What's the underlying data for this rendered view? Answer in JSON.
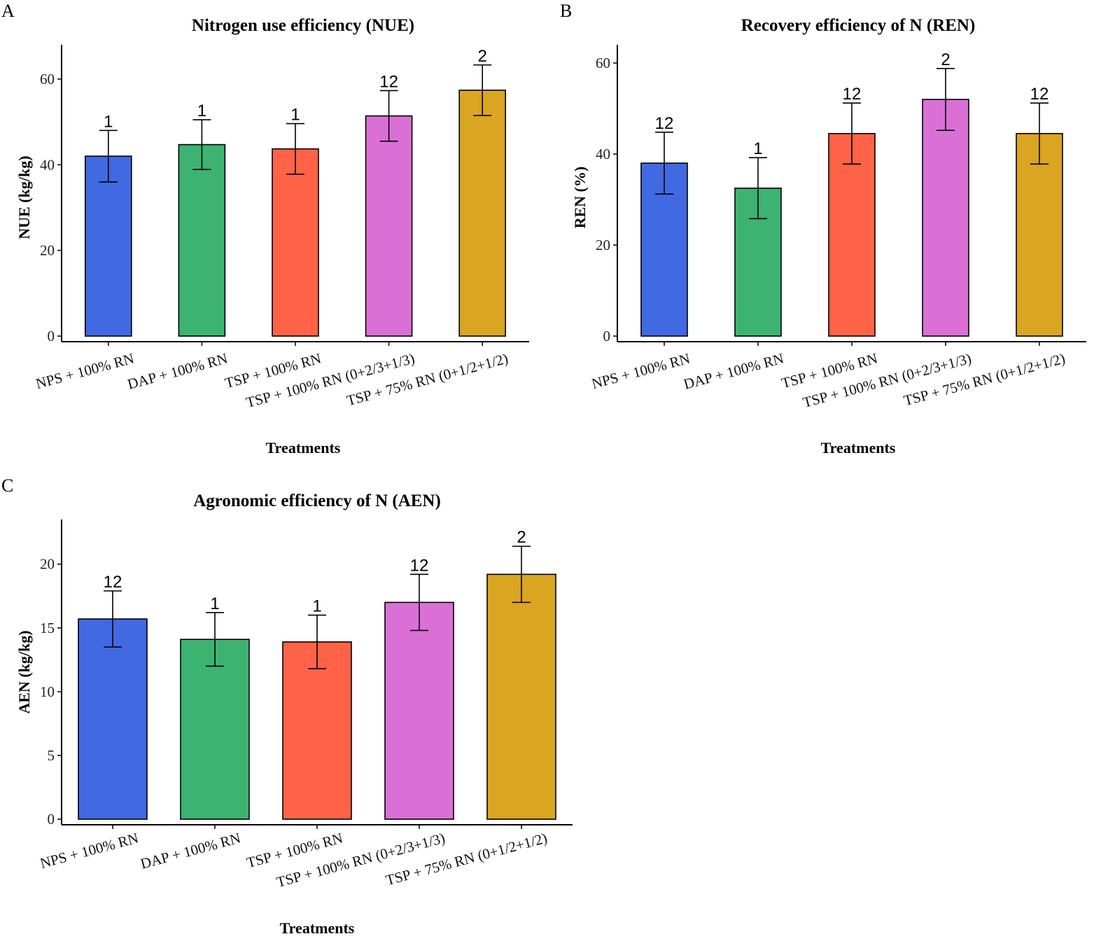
{
  "colors": {
    "blue": "#4169E1",
    "green": "#3CB371",
    "red": "#FF6347",
    "violet": "#DA70D6",
    "gold": "#DAA520"
  },
  "chart_data": [
    {
      "type": "bar",
      "panel": "A",
      "title": "Nitrogen use efficiency (NUE)",
      "xlabel": "Treatments",
      "ylabel": "NUE (kg/kg)",
      "ylim": [
        0,
        68
      ],
      "yticks": [
        0,
        20,
        40,
        60
      ],
      "categories": [
        "NPS + 100% RN",
        "DAP + 100% RN",
        "TSP + 100% RN",
        "TSP + 100% RN (0+2/3+1/3)",
        "TSP + 75% RN (0+1/2+1/2)"
      ],
      "values": [
        42,
        44.7,
        43.7,
        51.4,
        57.4
      ],
      "error": [
        6,
        5.8,
        5.9,
        5.9,
        5.9
      ],
      "letters": [
        "1",
        "1",
        "1",
        "12",
        "2"
      ],
      "bar_colors": [
        "#4169E1",
        "#3CB371",
        "#FF6347",
        "#DA70D6",
        "#DAA520"
      ],
      "grid": false
    },
    {
      "type": "bar",
      "panel": "B",
      "title": "Recovery efficiency of N (REN)",
      "xlabel": "Treatments",
      "ylabel": "REN (%)",
      "ylim": [
        0,
        64
      ],
      "yticks": [
        0,
        20,
        40,
        60
      ],
      "categories": [
        "NPS + 100% RN",
        "DAP + 100% RN",
        "TSP + 100% RN",
        "TSP + 100% RN (0+2/3+1/3)",
        "TSP + 75% RN (0+1/2+1/2)"
      ],
      "values": [
        38,
        32.5,
        44.5,
        52,
        44.5
      ],
      "error": [
        6.8,
        6.7,
        6.7,
        6.8,
        6.7
      ],
      "letters": [
        "12",
        "1",
        "12",
        "2",
        "12"
      ],
      "bar_colors": [
        "#4169E1",
        "#3CB371",
        "#FF6347",
        "#DA70D6",
        "#DAA520"
      ],
      "grid": false
    },
    {
      "type": "bar",
      "panel": "C",
      "title": "Agronomic efficiency of N (AEN)",
      "xlabel": "Treatments",
      "ylabel": "AEN (kg/kg)",
      "ylim": [
        0,
        23.5
      ],
      "yticks": [
        0,
        5,
        10,
        15,
        20
      ],
      "categories": [
        "NPS + 100% RN",
        "DAP + 100% RN",
        "TSP + 100% RN",
        "TSP + 100% RN (0+2/3+1/3)",
        "TSP + 75% RN (0+1/2+1/2)"
      ],
      "values": [
        15.7,
        14.1,
        13.9,
        17,
        19.2
      ],
      "error": [
        2.2,
        2.1,
        2.1,
        2.2,
        2.2
      ],
      "letters": [
        "12",
        "1",
        "1",
        "12",
        "2"
      ],
      "bar_colors": [
        "#4169E1",
        "#3CB371",
        "#FF6347",
        "#DA70D6",
        "#DAA520"
      ],
      "grid": false
    }
  ]
}
